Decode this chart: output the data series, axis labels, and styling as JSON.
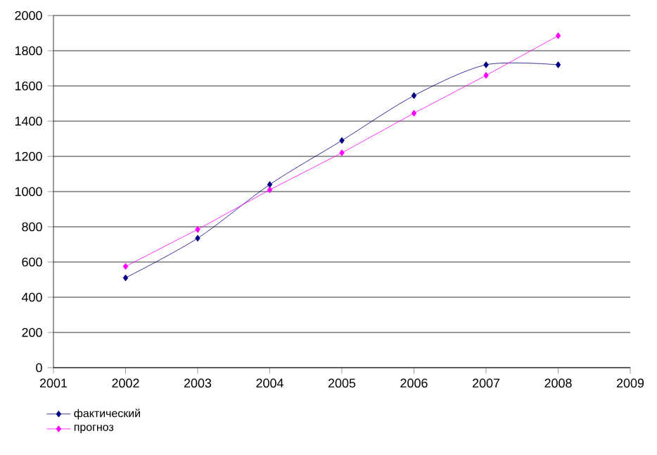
{
  "chart_data": {
    "type": "line",
    "x": [
      2002,
      2003,
      2004,
      2005,
      2006,
      2007,
      2008
    ],
    "series": [
      {
        "name": "фактический",
        "color": "#000080",
        "values": [
          510,
          735,
          1040,
          1290,
          1545,
          1720,
          1720
        ]
      },
      {
        "name": "прогноз",
        "color": "#ff00ff",
        "values": [
          575,
          785,
          1010,
          1220,
          1445,
          1660,
          1885
        ]
      }
    ],
    "xlim": [
      2001,
      2009
    ],
    "xticks": [
      2001,
      2002,
      2003,
      2004,
      2005,
      2006,
      2007,
      2008,
      2009
    ],
    "ylim": [
      0,
      2000
    ],
    "yticks": [
      0,
      200,
      400,
      600,
      800,
      1000,
      1200,
      1400,
      1600,
      1800,
      2000
    ],
    "grid": "y",
    "legend": "bottom left",
    "marker": "diamond"
  }
}
